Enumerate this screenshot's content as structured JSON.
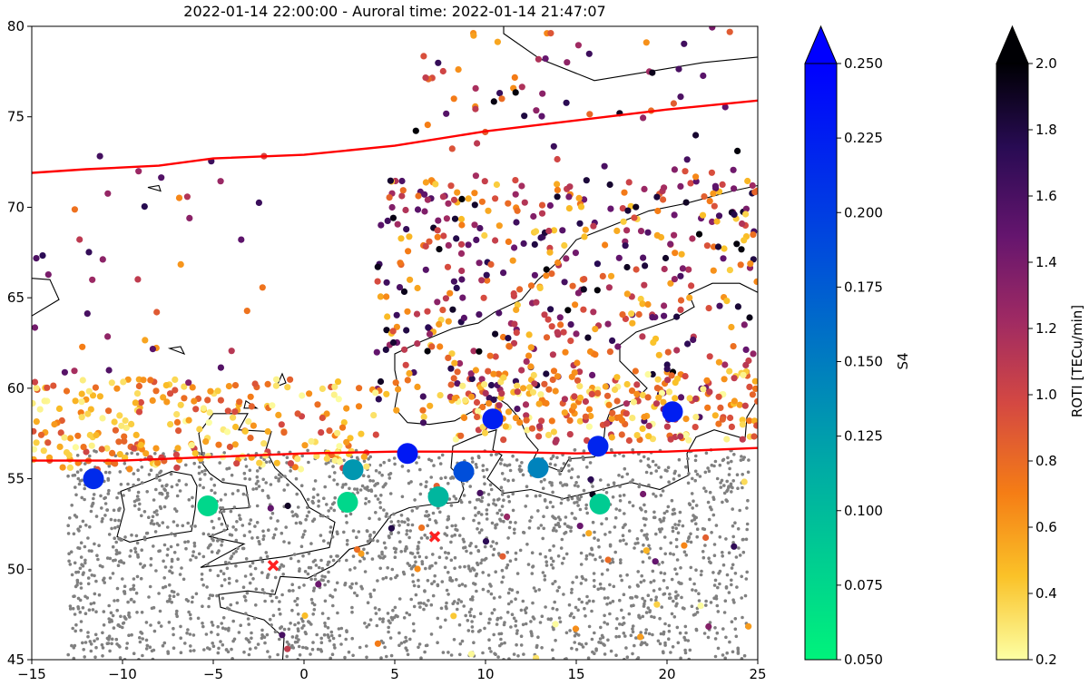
{
  "chart_data": {
    "type": "scatter",
    "title": "2022-01-14 22:00:00 - Auroral time: 2022-01-14 21:47:07",
    "xlabel": "",
    "ylabel": "",
    "xlim": [
      -15,
      25
    ],
    "ylim": [
      45,
      80
    ],
    "x_ticks": [
      -15,
      -10,
      -5,
      0,
      5,
      10,
      15,
      20,
      25
    ],
    "y_ticks": [
      45,
      50,
      55,
      60,
      65,
      70,
      75,
      80
    ],
    "grid": false,
    "colorbars": [
      {
        "name": "S4",
        "label": "S4",
        "range": [
          0.05,
          0.25
        ],
        "extend": "max",
        "ticks": [
          "0.050",
          "0.075",
          "0.100",
          "0.125",
          "0.150",
          "0.175",
          "0.200",
          "0.225",
          "0.250"
        ],
        "colors": [
          "#00f37b",
          "#00a9a6",
          "#0050d9",
          "#0000ff"
        ]
      },
      {
        "name": "ROTI",
        "label": "ROTI [TECu/min]",
        "range": [
          0.2,
          2.0
        ],
        "extend": "max",
        "ticks": [
          "0.2",
          "0.4",
          "0.6",
          "0.8",
          "1.0",
          "1.2",
          "1.4",
          "1.6",
          "1.8",
          "2.0"
        ],
        "colors": [
          "#fcffa4",
          "#fac228",
          "#f57d15",
          "#d44842",
          "#9f2a63",
          "#65156e",
          "#280b53",
          "#000004"
        ]
      }
    ],
    "auroral_boundaries": [
      {
        "name": "poleward",
        "color": "#ff0000",
        "points": [
          [
            -15,
            71.9
          ],
          [
            -12,
            72.1
          ],
          [
            -8,
            72.3
          ],
          [
            -5,
            72.7
          ],
          [
            0,
            72.9
          ],
          [
            5,
            73.4
          ],
          [
            10,
            74.2
          ],
          [
            15,
            74.8
          ],
          [
            20,
            75.4
          ],
          [
            25,
            75.9
          ]
        ]
      },
      {
        "name": "equatorward",
        "color": "#ff0000",
        "points": [
          [
            -15,
            56.0
          ],
          [
            -10,
            56.0
          ],
          [
            -5,
            56.2
          ],
          [
            0,
            56.4
          ],
          [
            5,
            56.5
          ],
          [
            10,
            56.5
          ],
          [
            15,
            56.4
          ],
          [
            20,
            56.5
          ],
          [
            25,
            56.7
          ]
        ]
      }
    ],
    "s4_stations": [
      {
        "lon": -11.6,
        "lat": 55.0,
        "s4": 0.215
      },
      {
        "lon": -5.3,
        "lat": 53.5,
        "s4": 0.075
      },
      {
        "lon": 2.4,
        "lat": 53.7,
        "s4": 0.075
      },
      {
        "lon": 2.7,
        "lat": 55.5,
        "s4": 0.13
      },
      {
        "lon": 5.7,
        "lat": 56.4,
        "s4": 0.23
      },
      {
        "lon": 7.4,
        "lat": 54.0,
        "s4": 0.105
      },
      {
        "lon": 8.8,
        "lat": 55.4,
        "s4": 0.185
      },
      {
        "lon": 10.4,
        "lat": 58.3,
        "s4": 0.225
      },
      {
        "lon": 12.9,
        "lat": 55.6,
        "s4": 0.145
      },
      {
        "lon": 16.2,
        "lat": 56.8,
        "s4": 0.22
      },
      {
        "lon": 16.3,
        "lat": 53.6,
        "s4": 0.085
      },
      {
        "lon": 20.3,
        "lat": 58.7,
        "s4": 0.225
      }
    ],
    "markers_x": [
      {
        "lon": -1.7,
        "lat": 50.2
      },
      {
        "lon": 7.2,
        "lat": 51.8
      }
    ]
  }
}
